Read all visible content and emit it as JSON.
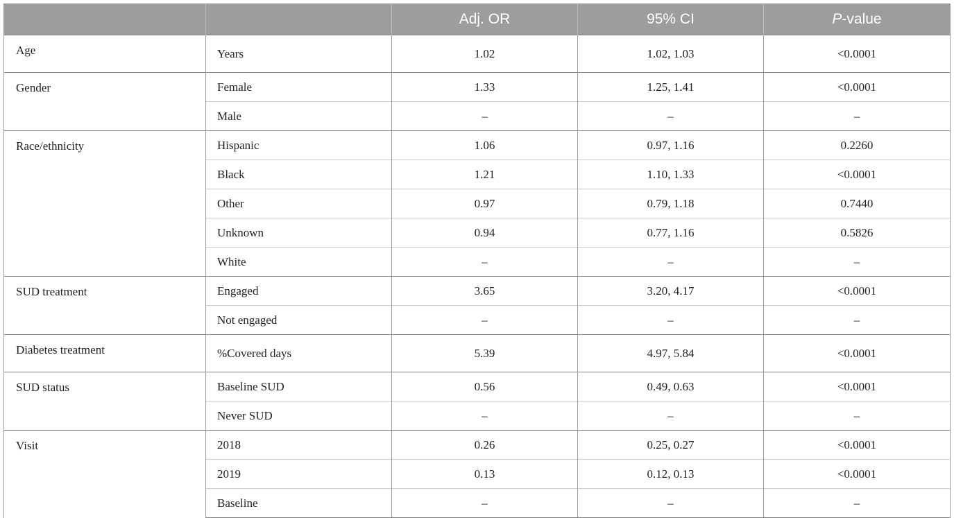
{
  "table": {
    "headers": {
      "blank1": "",
      "blank2": "",
      "adj_or": "Adj. OR",
      "ci": "95% CI",
      "p_italic": "P",
      "p_rest": "-value"
    },
    "rows": [
      {
        "group": "Age",
        "level": "Years",
        "or": "1.02",
        "ci": "1.02, 1.03",
        "p": "<0.0001"
      },
      {
        "group": "Gender",
        "level": "Female",
        "or": "1.33",
        "ci": "1.25, 1.41",
        "p": "<0.0001"
      },
      {
        "group": "",
        "level": "Male",
        "or": "–",
        "ci": "–",
        "p": "–"
      },
      {
        "group": "Race/ethnicity",
        "level": "Hispanic",
        "or": "1.06",
        "ci": "0.97, 1.16",
        "p": "0.2260"
      },
      {
        "group": "",
        "level": "Black",
        "or": "1.21",
        "ci": "1.10, 1.33",
        "p": "<0.0001"
      },
      {
        "group": "",
        "level": "Other",
        "or": "0.97",
        "ci": "0.79, 1.18",
        "p": "0.7440"
      },
      {
        "group": "",
        "level": "Unknown",
        "or": "0.94",
        "ci": "0.77, 1.16",
        "p": "0.5826"
      },
      {
        "group": "",
        "level": "White",
        "or": "–",
        "ci": "–",
        "p": "–"
      },
      {
        "group": "SUD treatment",
        "level": "Engaged",
        "or": "3.65",
        "ci": "3.20, 4.17",
        "p": "<0.0001"
      },
      {
        "group": "",
        "level": "Not engaged",
        "or": "–",
        "ci": "–",
        "p": "–"
      },
      {
        "group": "Diabetes treatment",
        "level": "%Covered days",
        "or": "5.39",
        "ci": "4.97, 5.84",
        "p": "<0.0001"
      },
      {
        "group": "SUD status",
        "level": "Baseline SUD",
        "or": "0.56",
        "ci": "0.49, 0.63",
        "p": "<0.0001"
      },
      {
        "group": "",
        "level": "Never SUD",
        "or": "–",
        "ci": "–",
        "p": "–"
      },
      {
        "group": "Visit",
        "level": "2018",
        "or": "0.26",
        "ci": "0.25, 0.27",
        "p": "<0.0001"
      },
      {
        "group": "",
        "level": "2019",
        "or": "0.13",
        "ci": "0.12, 0.13",
        "p": "<0.0001"
      },
      {
        "group": "",
        "level": "Baseline",
        "or": "–",
        "ci": "–",
        "p": "–"
      }
    ]
  },
  "colors": {
    "header_bg": "#9b9d9e",
    "header_text": "#ffffff",
    "body_text": "#222222",
    "border": "#9b9d9e"
  }
}
